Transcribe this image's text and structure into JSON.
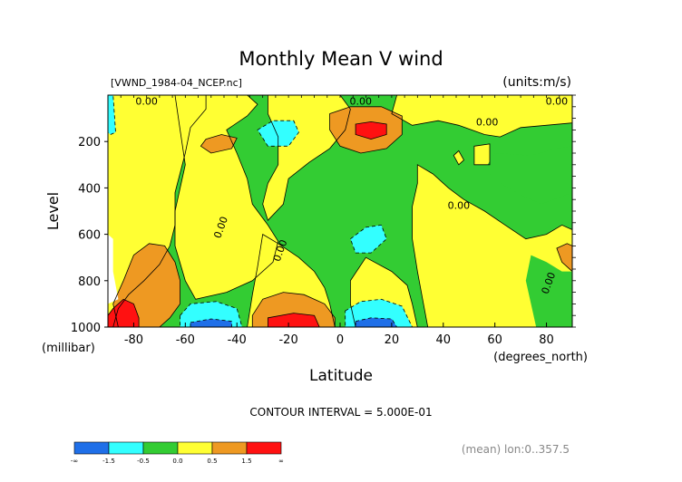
{
  "chart_data": {
    "type": "contour",
    "title": "Monthly Mean V wind",
    "file_label": "[VWND_1984-04_NCEP.nc]",
    "units_label": "(units:m/s)",
    "xlabel": "Latitude",
    "x_units": "(degrees_north)",
    "ylabel": "Level",
    "y_units": "(millibar)",
    "x_range": [
      -90,
      90
    ],
    "y_range": [
      1000,
      0
    ],
    "x_ticks": [
      -80,
      -60,
      -40,
      -20,
      0,
      20,
      40,
      60,
      80
    ],
    "y_ticks": [
      200,
      400,
      600,
      800,
      1000
    ],
    "contour_interval_text": "CONTOUR INTERVAL = 5.000E-01",
    "contour_label": "0.00",
    "footer_text": "(mean) lon:0..357.5",
    "colorbar": {
      "colors": [
        "#1f6fe8",
        "#33ffff",
        "#33cc33",
        "#ffff33",
        "#ee9922",
        "#ff1111"
      ],
      "labels": [
        "-∞",
        "-1.5",
        "-0.5",
        "0.0",
        "0.5",
        "1.5",
        "∞"
      ]
    },
    "features": [
      {
        "sign": "positive",
        "lat": 12,
        "level": 160,
        "peak": 2.0
      },
      {
        "sign": "positive",
        "lat": -18,
        "level": 980,
        "peak": 2.0
      },
      {
        "sign": "positive",
        "lat": -85,
        "level": 950,
        "peak": 2.0
      },
      {
        "sign": "positive",
        "lat": -72,
        "level": 820,
        "peak": 0.8
      },
      {
        "sign": "positive",
        "lat": -48,
        "level": 220,
        "peak": 0.6
      },
      {
        "sign": "negative",
        "lat": -25,
        "level": 180,
        "peak": -1.0
      },
      {
        "sign": "negative",
        "lat": 12,
        "level": 980,
        "peak": -2.0
      },
      {
        "sign": "negative",
        "lat": -52,
        "level": 980,
        "peak": -1.8
      },
      {
        "sign": "negative",
        "lat": 12,
        "level": 620,
        "peak": -0.7
      }
    ],
    "contour_label_positions": [
      {
        "lat": -75,
        "level": 5
      },
      {
        "lat": 8,
        "level": 5
      },
      {
        "lat": 57,
        "level": 95
      },
      {
        "lat": 84,
        "level": 5
      },
      {
        "lat": 46,
        "level": 455
      },
      {
        "lat": -45,
        "level": 540
      },
      {
        "lat": -22,
        "level": 640
      },
      {
        "lat": 82,
        "level": 780
      }
    ]
  }
}
